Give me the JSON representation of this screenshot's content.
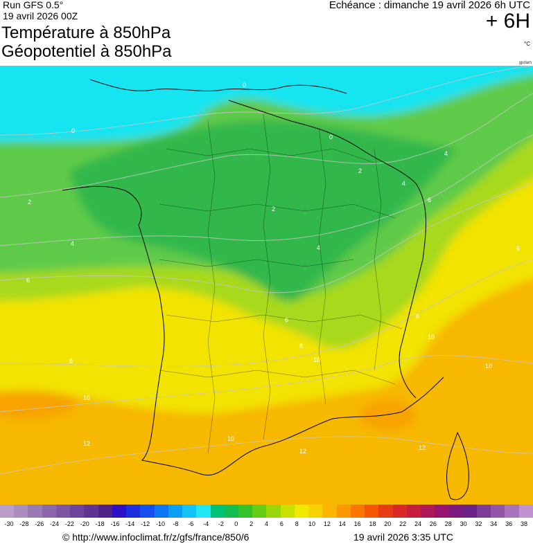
{
  "header": {
    "run": "Run GFS 0.5°",
    "run_date": "19 avril 2026 00Z",
    "title_line1": "Température à 850hPa",
    "title_line2": "Géopotentiel à 850hPa",
    "echeance": "Echéance : dimanche 19 avril 2026 6h UTC",
    "lead": "+ 6H",
    "unit": "°C",
    "brand": "gpdam"
  },
  "map": {
    "region": "France",
    "field": "850 hPa temperature",
    "isotherm_labels": [
      "0",
      "0",
      "0",
      "2",
      "2",
      "2",
      "4",
      "4",
      "4",
      "4",
      "6",
      "6",
      "6",
      "6",
      "6",
      "8",
      "8",
      "10",
      "10",
      "10",
      "10",
      "10",
      "12",
      "12",
      "12"
    ]
  },
  "legend": {
    "ticks": [
      "-30",
      "-28",
      "-26",
      "-24",
      "-22",
      "-20",
      "-18",
      "-16",
      "-14",
      "-12",
      "-10",
      "-8",
      "-6",
      "-4",
      "-2",
      "0",
      "2",
      "4",
      "6",
      "8",
      "10",
      "12",
      "14",
      "16",
      "18",
      "20",
      "22",
      "24",
      "26",
      "28",
      "30",
      "32",
      "34",
      "36",
      "38"
    ],
    "colors": [
      "#b89ec8",
      "#a98cc0",
      "#9a79b7",
      "#8b67ae",
      "#7c55a4",
      "#6d449b",
      "#5e3392",
      "#4f2289",
      "#2b12c4",
      "#1d2ee0",
      "#1450ec",
      "#0b77f2",
      "#0a9ef4",
      "#12c4f5",
      "#20e5f2",
      "#00c277",
      "#14bd52",
      "#33c22a",
      "#66cd16",
      "#99d60a",
      "#c9e000",
      "#f1e800",
      "#f7d100",
      "#fab600",
      "#fb9800",
      "#f97700",
      "#f35500",
      "#e83a14",
      "#d82828",
      "#c41e3c",
      "#ad1857",
      "#96136f",
      "#7d1a7e",
      "#6a2386",
      "#7c3b94",
      "#9256a8",
      "#a873bc",
      "#be92cf"
    ]
  },
  "footer": {
    "url": "© http://www.infoclimat.fr/z/gfs/france/850/6",
    "date": "19 avril 2026   3:35 UTC"
  },
  "colors": {
    "cyan": "#13e4f0",
    "green_dark": "#33b74c",
    "green": "#5fca4a",
    "yellowgreen": "#a8d91d",
    "yellow": "#f2e300",
    "orange": "#f7b800",
    "orange_deep": "#f8a300"
  }
}
